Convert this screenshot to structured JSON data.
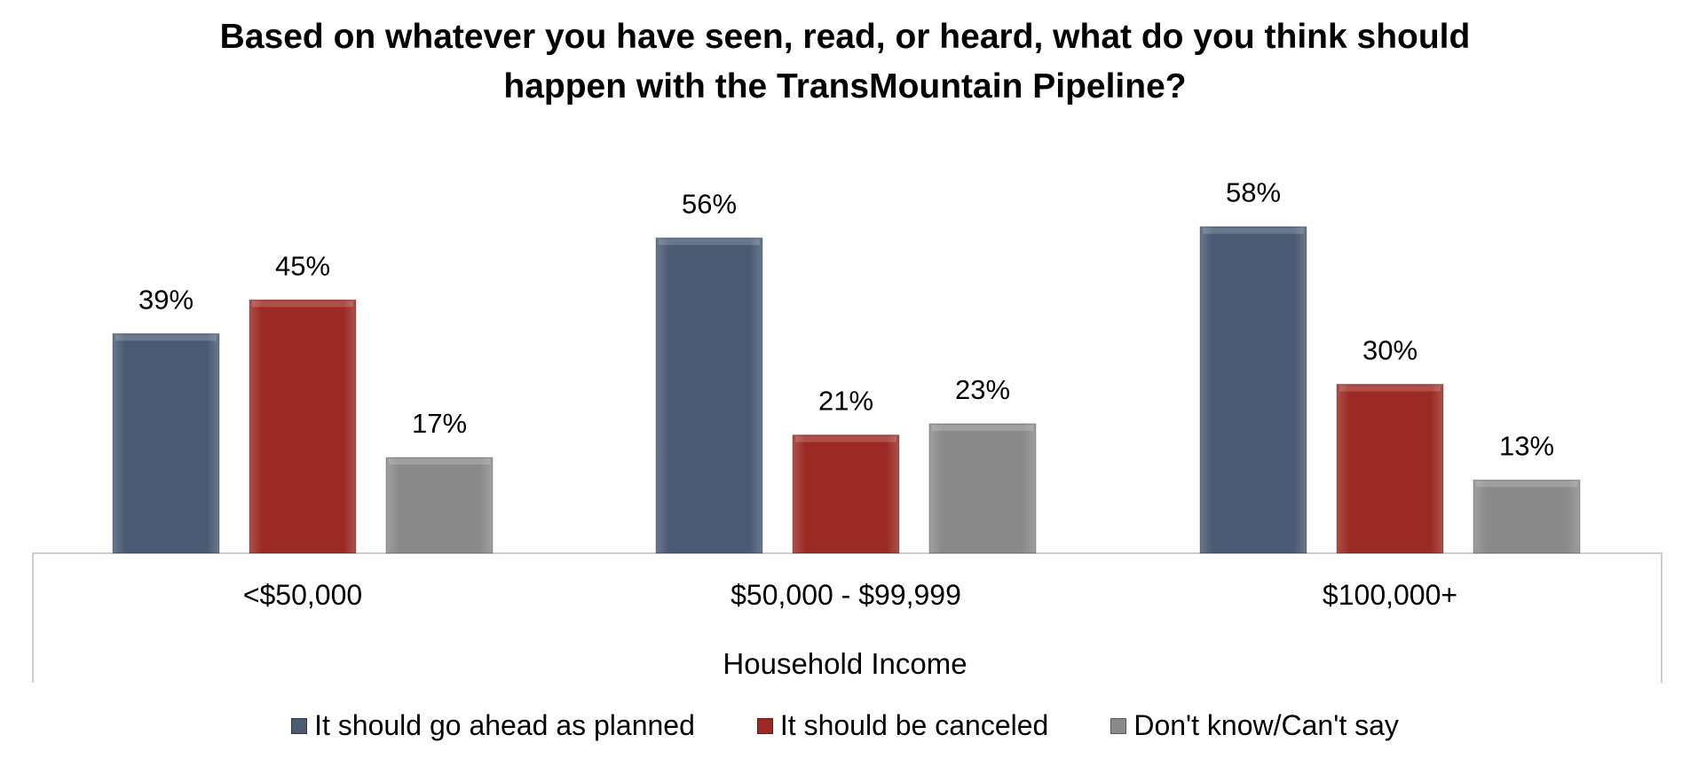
{
  "chart_data": {
    "type": "bar",
    "title_lines": [
      "Based on whatever you have seen, read, or heard, what do you think should",
      "happen with the TransMountain Pipeline?"
    ],
    "xlabel": "Household Income",
    "ylabel": "",
    "categories": [
      "<$50,000",
      "$50,000 - $99,999",
      "$100,000+"
    ],
    "series": [
      {
        "name": "It should go ahead as planned",
        "color": "#4a5a73",
        "values": [
          39,
          56,
          58
        ]
      },
      {
        "name": "It should be canceled",
        "color": "#9b2a24",
        "values": [
          45,
          21,
          30
        ]
      },
      {
        "name": "Don't know/Can't say",
        "color": "#8a8a8a",
        "values": [
          17,
          23,
          13
        ]
      }
    ],
    "value_suffix": "%",
    "legend_position": "bottom",
    "grid": false
  }
}
